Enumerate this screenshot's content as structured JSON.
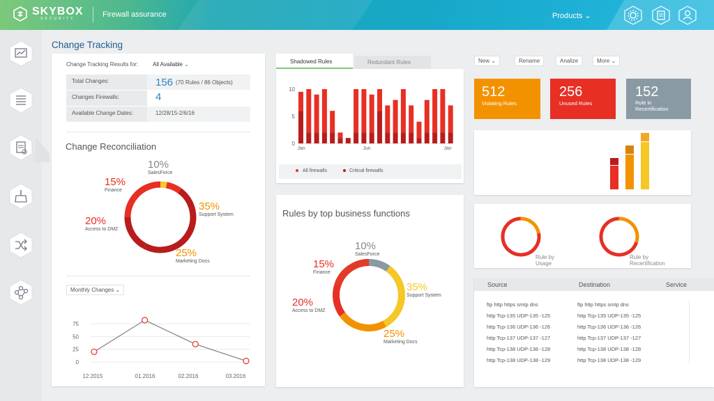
{
  "header": {
    "logo": "SKYBOX",
    "logo_sub": "SECURITY",
    "title": "Firewall assurance",
    "products": "Products ⌄"
  },
  "page_title": "Change Tracking",
  "ct": {
    "results_label": "Change Tracking Results for:",
    "results_value": "All Available",
    "rows": [
      {
        "label": "Total Changes:",
        "value": "156",
        "extra": "(70 Rules / 86 Objects)"
      },
      {
        "label": "Changes Firewalls:",
        "value": "4",
        "extra": ""
      },
      {
        "label": "Available Change Dates:",
        "value": "12/28/15-2/6/16",
        "extra": ""
      }
    ]
  },
  "recon": {
    "title": "Change Reconciliation",
    "labels": [
      {
        "pct": "10%",
        "name": "SalesForce"
      },
      {
        "pct": "15%",
        "name": "Finance"
      },
      {
        "pct": "35%",
        "name": "Support System"
      },
      {
        "pct": "20%",
        "name": "Access to DMZ"
      },
      {
        "pct": "25%",
        "name": "Marketing Docs"
      }
    ]
  },
  "monthly": {
    "dropdown": "Monthly Changes ⌄",
    "yticks": [
      "75",
      "50",
      "25",
      "0"
    ],
    "xticks": [
      "12.2015",
      "01.2016",
      "02.2016",
      "03.2016"
    ],
    "values": [
      20,
      82,
      35,
      2
    ],
    "ymax": 75
  },
  "tabs": {
    "shadowed": "Shadowed Rules",
    "redundant": "Redundant Rules"
  },
  "bars": {
    "yticks": [
      "10",
      "5",
      "0"
    ],
    "xticks": [
      "Jan",
      "Jun",
      "Jan"
    ],
    "legend_all": "All firewalls",
    "legend_critical": "Critical firewalls",
    "all": [
      9.5,
      10,
      9,
      10,
      6,
      2,
      1,
      10,
      10,
      9,
      10,
      7,
      8,
      10,
      7,
      4,
      8,
      10,
      10,
      7
    ],
    "critical": [
      6,
      2,
      2,
      2,
      2,
      1,
      1,
      2,
      2,
      2,
      6,
      2,
      2,
      2,
      2,
      1,
      2,
      2,
      2,
      2
    ],
    "ymax": 10
  },
  "business": {
    "title": "Rules by top business functions",
    "labels": [
      {
        "pct": "10%",
        "name": "SalesForce"
      },
      {
        "pct": "15%",
        "name": "Finance"
      },
      {
        "pct": "35%",
        "name": "Support System"
      },
      {
        "pct": "20%",
        "name": "Access to DMZ"
      },
      {
        "pct": "25%",
        "name": "Marketing Docs"
      }
    ]
  },
  "actions": {
    "new": "New ⌄",
    "rename": "Rename",
    "analize": "Analize",
    "more": "More ⌄"
  },
  "stats": [
    {
      "value": "512",
      "label": "Violating Rules",
      "color": "#f39200"
    },
    {
      "value": "256",
      "label": "Unused Rules",
      "color": "#e72f24"
    },
    {
      "value": "152",
      "label": "Rule in Recertification",
      "color": "#8a9aa4"
    }
  ],
  "gauges": {
    "usage": "Rule by Usage",
    "recert": "Rule by Recertification"
  },
  "table": {
    "headers": [
      "Source",
      "Destination",
      "Service"
    ],
    "source": [
      "ftp http https smtp dns",
      "http Tcp-135 UDP-135 -125",
      "http Tcp-136 UDP-136 -126",
      "http Tcp-137 UDP-137 -127",
      "http Tcp-138 UDP-138 -128",
      "http Tcp-138 UDP-138 -129"
    ],
    "destination": [
      "ftp http https smtp dns",
      "http Tcp-135 UDP-135 -125",
      "http Tcp-136 UDP-136 -126",
      "http Tcp-137 UDP-137 -127",
      "http Tcp-138 UDP-138 -128",
      "http Tcp-138 UDP-138 -129"
    ]
  },
  "colors": {
    "red": "#e72f24",
    "darkred": "#b81c1c",
    "orange": "#f39200",
    "yellow": "#f5c727",
    "grey": "#8a9aa4",
    "blue": "#2a86c5"
  }
}
